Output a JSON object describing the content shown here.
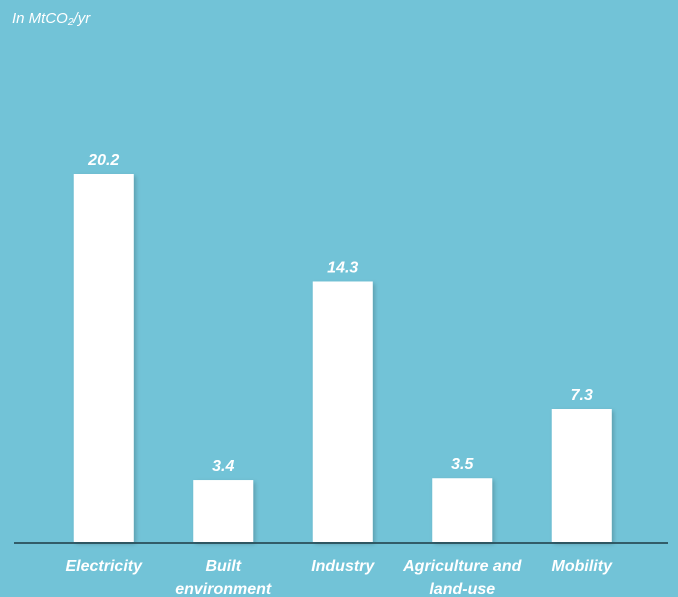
{
  "chart_data": {
    "type": "bar",
    "y_label": "In MtCO₂/yr",
    "categories": [
      "Electricity",
      "Built environment",
      "Industry",
      "Agriculture and land-use",
      "Mobility"
    ],
    "values": [
      20.2,
      3.4,
      14.3,
      3.5,
      7.3
    ],
    "color": "#ffffff"
  }
}
